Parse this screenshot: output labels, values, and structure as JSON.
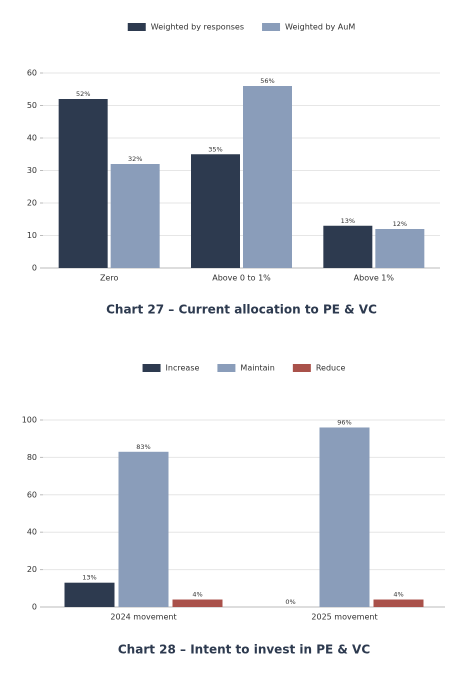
{
  "chart_data": [
    {
      "type": "bar",
      "title": "Chart 27 – Current allocation to PE & VC",
      "categories": [
        "Zero",
        "Above 0 to 1%",
        "Above 1%"
      ],
      "series": [
        {
          "name": "Weighted by responses",
          "color": "#2d3a4f",
          "values": [
            52,
            35,
            13
          ],
          "value_labels": [
            "52%",
            "35%",
            "13%"
          ]
        },
        {
          "name": "Weighted by AuM",
          "color": "#8a9dba",
          "values": [
            32,
            56,
            12
          ],
          "value_labels": [
            "32%",
            "56%",
            "12%"
          ]
        }
      ],
      "ylim": [
        0,
        60
      ],
      "yticks": [
        0,
        10,
        20,
        30,
        40,
        50,
        60
      ],
      "grid": true,
      "legend": "top"
    },
    {
      "type": "bar",
      "title": "Chart 28 – Intent to invest in PE & VC",
      "categories": [
        "2024 movement",
        "2025 movement"
      ],
      "series": [
        {
          "name": "Increase",
          "color": "#2d3a4f",
          "values": [
            13,
            0
          ],
          "value_labels": [
            "13%",
            "0%"
          ]
        },
        {
          "name": "Maintain",
          "color": "#8a9dba",
          "values": [
            83,
            96
          ],
          "value_labels": [
            "83%",
            "96%"
          ]
        },
        {
          "name": "Reduce",
          "color": "#a9514a",
          "values": [
            4,
            4
          ],
          "value_labels": [
            "4%",
            "4%"
          ]
        }
      ],
      "ylim": [
        0,
        100
      ],
      "yticks": [
        0,
        20,
        40,
        60,
        80,
        100
      ],
      "grid": true,
      "legend": "top"
    }
  ]
}
